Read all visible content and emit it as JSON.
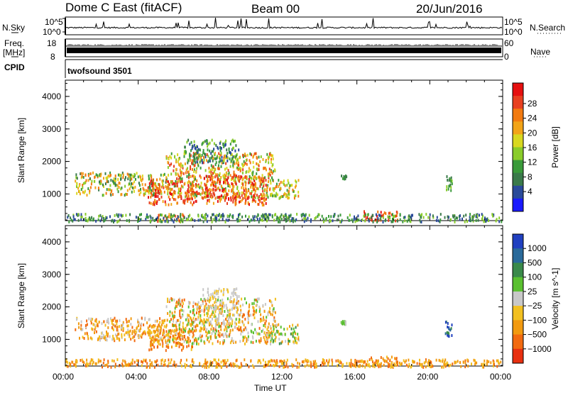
{
  "header": {
    "title": "Dome C East (fitACF)",
    "beam": "Beam 00",
    "date": "20/Jun/2016"
  },
  "status_panels": {
    "nsky_label": "N.Sky",
    "nsky_ticks": [
      "10^5",
      "10^0"
    ],
    "nsearch_label": "N.Search",
    "nsearch_ticks": [
      "10^5",
      "10^0"
    ],
    "freq_label": "Freq.",
    "freq_unit": "[MHz]",
    "freq_ticks": [
      "18",
      "8"
    ],
    "nave_label": "Nave",
    "nave_ticks": [
      "60",
      "0"
    ],
    "cpid_label": "CPID",
    "cpid_value": "twofsound 3501"
  },
  "x_axis": {
    "label": "Time UT",
    "ticks": [
      "00:00",
      "04:00",
      "08:00",
      "12:00",
      "16:00",
      "20:00",
      "00:00"
    ],
    "range_hours": [
      0,
      24
    ]
  },
  "chart_data": [
    {
      "type": "heatmap",
      "quantity": "Power",
      "ylabel": "Slant Range [km]",
      "xlabel": "Time UT",
      "ylim": [
        180,
        4500
      ],
      "y_ticks": [
        "1000",
        "2000",
        "3000",
        "4000"
      ],
      "colorbar_label": "Power [dB]",
      "colorbar_ticks": [
        "4",
        "8",
        "12",
        "16",
        "20",
        "24",
        "28"
      ],
      "colors": [
        "#1a1aff",
        "#2a4a9a",
        "#3a7a4a",
        "#3a9a3a",
        "#8acc2a",
        "#d8d820",
        "#f2a418",
        "#f27a10",
        "#e84020",
        "#e61010"
      ],
      "regions": [
        {
          "x": [
            0.5,
            5.5
          ],
          "y": [
            1000,
            1700
          ],
          "level": [
            2,
            7
          ]
        },
        {
          "x": [
            4.5,
            7.2
          ],
          "y": [
            700,
            1500
          ],
          "level": [
            6,
            9
          ]
        },
        {
          "x": [
            5.5,
            11.5
          ],
          "y": [
            900,
            2300
          ],
          "level": [
            3,
            8
          ]
        },
        {
          "x": [
            7.5,
            11.0
          ],
          "y": [
            700,
            1600
          ],
          "level": [
            6,
            9
          ]
        },
        {
          "x": [
            11.0,
            12.8
          ],
          "y": [
            900,
            1500
          ],
          "level": [
            3,
            7
          ]
        },
        {
          "x": [
            6.5,
            9.5
          ],
          "y": [
            2000,
            2700
          ],
          "level": [
            1,
            4
          ]
        },
        {
          "x": [
            5.0,
            6.6
          ],
          "y": [
            200,
            420
          ],
          "level": [
            6,
            9
          ]
        },
        {
          "x": [
            16.3,
            18.2
          ],
          "y": [
            200,
            500
          ],
          "level": [
            7,
            9
          ]
        },
        {
          "x": [
            0.0,
            24.0
          ],
          "y": [
            180,
            420
          ],
          "level": [
            1,
            4
          ]
        },
        {
          "x": [
            20.8,
            21.2
          ],
          "y": [
            1100,
            1600
          ],
          "level": [
            2,
            4
          ]
        },
        {
          "x": [
            15.1,
            15.4
          ],
          "y": [
            1500,
            1600
          ],
          "level": [
            2,
            3
          ]
        }
      ]
    },
    {
      "type": "heatmap",
      "quantity": "Velocity",
      "ylabel": "Slant Range [km]",
      "xlabel": "Time UT",
      "ylim": [
        180,
        4500
      ],
      "y_ticks": [
        "1000",
        "2000",
        "3000",
        "4000"
      ],
      "colorbar_label": "Velocity [m s^-1]",
      "colorbar_ticks": [
        "1000",
        "500",
        "100",
        "25",
        "−25",
        "−100",
        "−500",
        "−1000"
      ],
      "colors": [
        "#2040c0",
        "#2a6a9a",
        "#3a8a4a",
        "#5ac030",
        "#c8c8c8",
        "#f2c020",
        "#f29a10",
        "#f26a10",
        "#e83010"
      ],
      "regions": [
        {
          "x": [
            0.5,
            5.5
          ],
          "y": [
            1000,
            1700
          ],
          "level": [
            4,
            7
          ]
        },
        {
          "x": [
            4.5,
            7.2
          ],
          "y": [
            700,
            1500
          ],
          "level": [
            5,
            7
          ]
        },
        {
          "x": [
            5.5,
            11.5
          ],
          "y": [
            900,
            2300
          ],
          "level": [
            3,
            7
          ]
        },
        {
          "x": [
            7.5,
            9.5
          ],
          "y": [
            1500,
            2600
          ],
          "level": [
            4,
            5
          ]
        },
        {
          "x": [
            11.0,
            12.8
          ],
          "y": [
            900,
            1500
          ],
          "level": [
            2,
            6
          ]
        },
        {
          "x": [
            0.0,
            24.0
          ],
          "y": [
            180,
            420
          ],
          "level": [
            5,
            7
          ]
        },
        {
          "x": [
            16.3,
            18.2
          ],
          "y": [
            200,
            500
          ],
          "level": [
            5,
            7
          ]
        },
        {
          "x": [
            20.8,
            21.2
          ],
          "y": [
            1100,
            1600
          ],
          "level": [
            0,
            2
          ]
        },
        {
          "x": [
            15.1,
            15.4
          ],
          "y": [
            1500,
            1600
          ],
          "level": [
            3,
            4
          ]
        }
      ]
    }
  ]
}
